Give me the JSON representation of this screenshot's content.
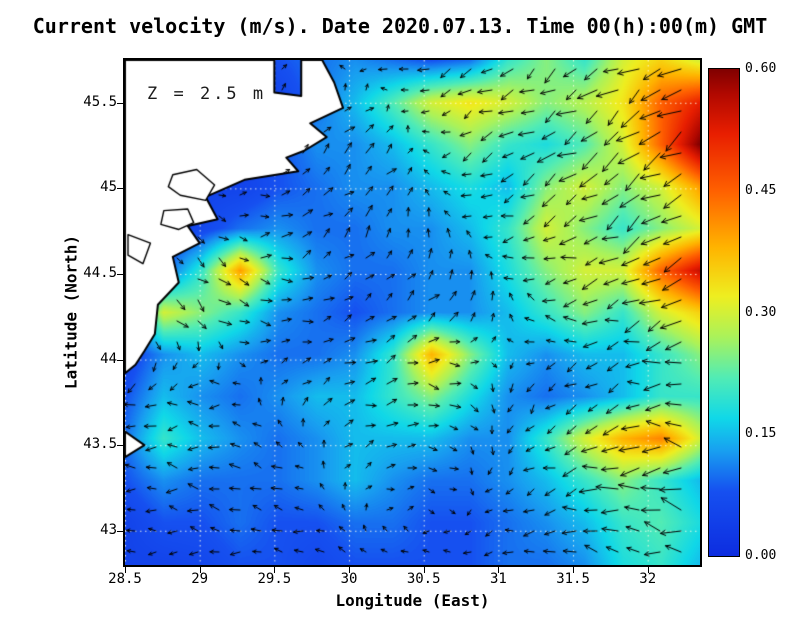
{
  "chart_data": {
    "type": "heatmap",
    "overlay": "quiver",
    "title": "Current velocity (m/s). Date 2020.07.13. Time 00(h):00(m) GMT",
    "annotation": "Z = 2.5 m",
    "xlabel": "Longitude (East)",
    "ylabel": "Latitude (North)",
    "xlim": [
      28.5,
      32.35
    ],
    "ylim": [
      42.8,
      45.75
    ],
    "xticks": [
      28.5,
      29,
      29.5,
      30,
      30.5,
      31,
      31.5,
      32
    ],
    "xtick_labels": [
      "28.5",
      "29",
      "29.5",
      "30",
      "30.5",
      "31",
      "31.5",
      "32"
    ],
    "yticks": [
      43,
      43.5,
      44,
      44.5,
      45,
      45.5
    ],
    "ytick_labels": [
      "43",
      "43.5",
      "44",
      "44.5",
      "45",
      "45.5"
    ],
    "grid": "dotted",
    "colorbar": {
      "min": 0.0,
      "max": 0.6,
      "tick_values": [
        0.0,
        0.15,
        0.3,
        0.45,
        0.6
      ],
      "tick_labels": [
        "0.00",
        "0.15",
        "0.30",
        "0.45",
        "0.60"
      ]
    },
    "colormap_stops": [
      {
        "v": 0.0,
        "c": "#0d2de0"
      },
      {
        "v": 0.08,
        "c": "#1650f0"
      },
      {
        "v": 0.13,
        "c": "#18a0f0"
      },
      {
        "v": 0.17,
        "c": "#10d8e8"
      },
      {
        "v": 0.22,
        "c": "#52ecb4"
      },
      {
        "v": 0.27,
        "c": "#aaf25a"
      },
      {
        "v": 0.32,
        "c": "#eeee20"
      },
      {
        "v": 0.38,
        "c": "#ffb400"
      },
      {
        "v": 0.45,
        "c": "#ff6000"
      },
      {
        "v": 0.52,
        "c": "#e81e00"
      },
      {
        "v": 0.57,
        "c": "#b00800"
      },
      {
        "v": 0.6,
        "c": "#800000"
      }
    ],
    "velocity_field": {
      "units": "m/s",
      "ncols": 16,
      "nrows": 13,
      "values": [
        [
          0.05,
          0.05,
          0.05,
          0.05,
          0.08,
          0.1,
          0.12,
          0.1,
          0.08,
          0.1,
          0.2,
          0.25,
          0.2,
          0.3,
          0.35,
          0.3
        ],
        [
          0.05,
          0.05,
          0.05,
          0.05,
          0.05,
          0.1,
          0.15,
          0.22,
          0.3,
          0.33,
          0.3,
          0.25,
          0.28,
          0.33,
          0.45,
          0.52
        ],
        [
          0.05,
          0.05,
          0.05,
          0.05,
          0.08,
          0.12,
          0.12,
          0.15,
          0.2,
          0.25,
          0.2,
          0.18,
          0.22,
          0.3,
          0.45,
          0.6
        ],
        [
          0.05,
          0.05,
          0.05,
          0.05,
          0.08,
          0.1,
          0.12,
          0.12,
          0.15,
          0.18,
          0.15,
          0.25,
          0.3,
          0.25,
          0.3,
          0.4
        ],
        [
          0.05,
          0.05,
          0.06,
          0.1,
          0.12,
          0.1,
          0.1,
          0.12,
          0.12,
          0.15,
          0.2,
          0.3,
          0.25,
          0.2,
          0.25,
          0.3
        ],
        [
          0.05,
          0.08,
          0.2,
          0.4,
          0.2,
          0.12,
          0.1,
          0.1,
          0.12,
          0.12,
          0.18,
          0.25,
          0.3,
          0.3,
          0.45,
          0.55
        ],
        [
          0.05,
          0.3,
          0.25,
          0.2,
          0.12,
          0.1,
          0.08,
          0.1,
          0.12,
          0.12,
          0.15,
          0.2,
          0.25,
          0.2,
          0.3,
          0.35
        ],
        [
          0.05,
          0.12,
          0.15,
          0.12,
          0.1,
          0.1,
          0.12,
          0.2,
          0.38,
          0.25,
          0.15,
          0.12,
          0.15,
          0.15,
          0.2,
          0.25
        ],
        [
          0.08,
          0.15,
          0.12,
          0.1,
          0.12,
          0.15,
          0.15,
          0.2,
          0.25,
          0.18,
          0.12,
          0.1,
          0.12,
          0.15,
          0.2,
          0.2
        ],
        [
          0.1,
          0.2,
          0.15,
          0.12,
          0.1,
          0.12,
          0.15,
          0.15,
          0.15,
          0.12,
          0.12,
          0.2,
          0.3,
          0.38,
          0.42,
          0.3
        ],
        [
          0.08,
          0.12,
          0.1,
          0.1,
          0.1,
          0.12,
          0.15,
          0.12,
          0.1,
          0.1,
          0.12,
          0.15,
          0.2,
          0.25,
          0.2,
          0.15
        ],
        [
          0.05,
          0.08,
          0.08,
          0.1,
          0.08,
          0.08,
          0.1,
          0.1,
          0.08,
          0.08,
          0.1,
          0.12,
          0.15,
          0.2,
          0.22,
          0.18
        ],
        [
          0.05,
          0.05,
          0.06,
          0.08,
          0.08,
          0.06,
          0.08,
          0.08,
          0.08,
          0.08,
          0.1,
          0.1,
          0.12,
          0.18,
          0.2,
          0.15
        ]
      ]
    },
    "vector_field": {
      "units": "m/s",
      "ncols": 8,
      "nrows": 7,
      "u": [
        [
          0.0,
          0.0,
          0.02,
          -0.06,
          -0.12,
          -0.15,
          -0.22,
          -0.28
        ],
        [
          0.0,
          0.0,
          0.06,
          0.1,
          -0.08,
          -0.18,
          -0.25,
          -0.34
        ],
        [
          0.0,
          0.05,
          0.1,
          0.06,
          -0.05,
          -0.14,
          -0.24,
          -0.3
        ],
        [
          0.04,
          0.14,
          0.1,
          0.05,
          0.1,
          -0.08,
          -0.2,
          -0.26
        ],
        [
          -0.1,
          -0.14,
          0.05,
          0.14,
          0.09,
          -0.05,
          -0.15,
          -0.2
        ],
        [
          -0.08,
          -0.12,
          -0.1,
          0.05,
          0.04,
          -0.1,
          -0.28,
          -0.34
        ],
        [
          -0.05,
          -0.08,
          -0.08,
          -0.05,
          -0.05,
          -0.1,
          -0.15,
          -0.2
        ]
      ],
      "v": [
        [
          0.0,
          0.0,
          0.03,
          -0.02,
          -0.06,
          -0.1,
          -0.12,
          -0.16
        ],
        [
          0.0,
          0.0,
          0.05,
          0.08,
          -0.04,
          -0.1,
          -0.16,
          -0.22
        ],
        [
          0.0,
          -0.05,
          0.04,
          0.1,
          0.06,
          -0.06,
          -0.14,
          -0.1
        ],
        [
          -0.1,
          -0.1,
          0.0,
          0.05,
          0.09,
          0.05,
          -0.06,
          -0.1
        ],
        [
          -0.05,
          0.0,
          0.05,
          0.04,
          -0.05,
          -0.09,
          -0.05,
          0.0
        ],
        [
          0.0,
          0.02,
          0.03,
          0.02,
          -0.02,
          -0.05,
          -0.05,
          0.05
        ],
        [
          0.0,
          0.0,
          0.02,
          0.02,
          0.0,
          0.0,
          0.04,
          0.05
        ]
      ]
    },
    "land_polygons": [
      [
        [
          28.5,
          45.75
        ],
        [
          29.5,
          45.75
        ],
        [
          29.5,
          45.56
        ],
        [
          29.68,
          45.54
        ],
        [
          29.68,
          45.75
        ],
        [
          29.82,
          45.75
        ],
        [
          29.9,
          45.62
        ],
        [
          29.96,
          45.47
        ],
        [
          29.74,
          45.38
        ],
        [
          29.85,
          45.3
        ],
        [
          29.7,
          45.22
        ],
        [
          29.58,
          45.18
        ],
        [
          29.66,
          45.1
        ],
        [
          29.3,
          45.05
        ],
        [
          29.04,
          44.95
        ],
        [
          29.12,
          44.82
        ],
        [
          28.92,
          44.78
        ],
        [
          29.0,
          44.68
        ],
        [
          28.82,
          44.6
        ],
        [
          28.86,
          44.45
        ],
        [
          28.72,
          44.32
        ],
        [
          28.7,
          44.15
        ],
        [
          28.63,
          44.05
        ],
        [
          28.57,
          43.97
        ],
        [
          28.5,
          43.92
        ]
      ],
      [
        [
          28.5,
          43.58
        ],
        [
          28.63,
          43.5
        ],
        [
          28.5,
          43.43
        ]
      ]
    ],
    "lake_polygons": [
      [
        [
          28.82,
          45.08
        ],
        [
          28.98,
          45.11
        ],
        [
          29.1,
          45.02
        ],
        [
          29.04,
          44.93
        ],
        [
          28.87,
          44.96
        ],
        [
          28.79,
          45.01
        ]
      ],
      [
        [
          28.76,
          44.87
        ],
        [
          28.92,
          44.88
        ],
        [
          28.96,
          44.8
        ],
        [
          28.86,
          44.76
        ],
        [
          28.74,
          44.79
        ]
      ],
      [
        [
          28.52,
          44.73
        ],
        [
          28.67,
          44.68
        ],
        [
          28.62,
          44.56
        ],
        [
          28.52,
          44.61
        ]
      ]
    ],
    "style": {
      "sea_low_color": "#0d2de0",
      "land_color": "#ffffff",
      "coastline_color": "#000000",
      "arrow_color": "#000000",
      "gridline_color": "rgba(255,255,235,0.85)"
    }
  }
}
